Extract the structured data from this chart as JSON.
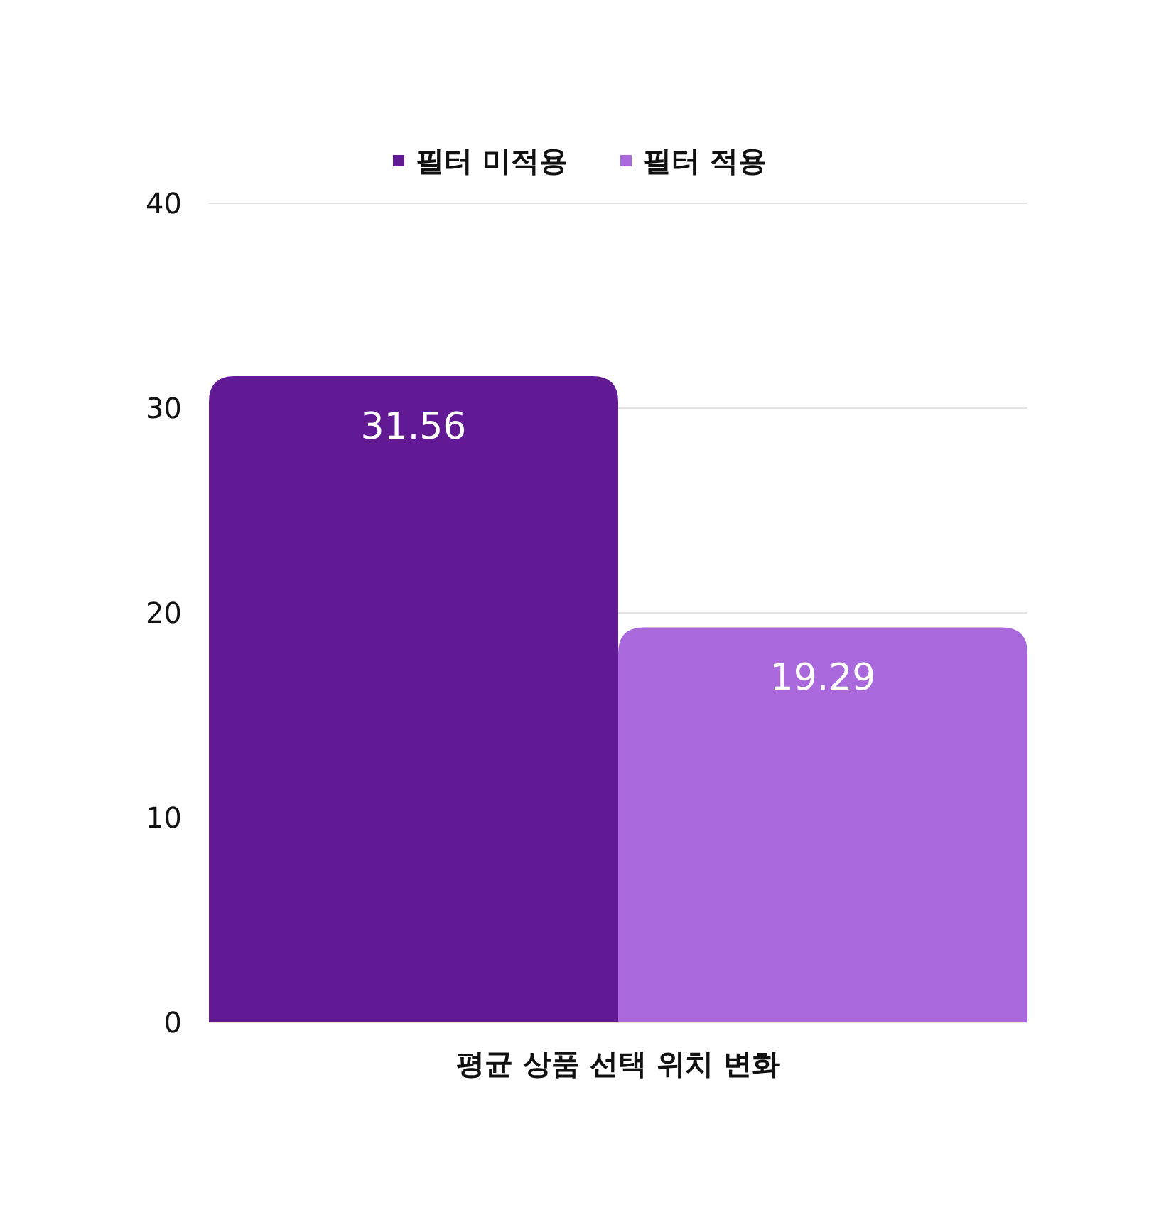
{
  "chart_data": {
    "type": "bar",
    "categories": [
      "평균 상품 선택 위치 변화"
    ],
    "series": [
      {
        "name": "필터 미적용",
        "color": "#621a94",
        "values": [
          31.56
        ]
      },
      {
        "name": "필터 적용",
        "color": "#a968db",
        "values": [
          19.29
        ]
      }
    ],
    "ylim": [
      0,
      40
    ],
    "yticks": [
      0,
      10,
      20,
      30,
      40
    ],
    "grid": "y",
    "legend": "top",
    "data_labels": true
  }
}
